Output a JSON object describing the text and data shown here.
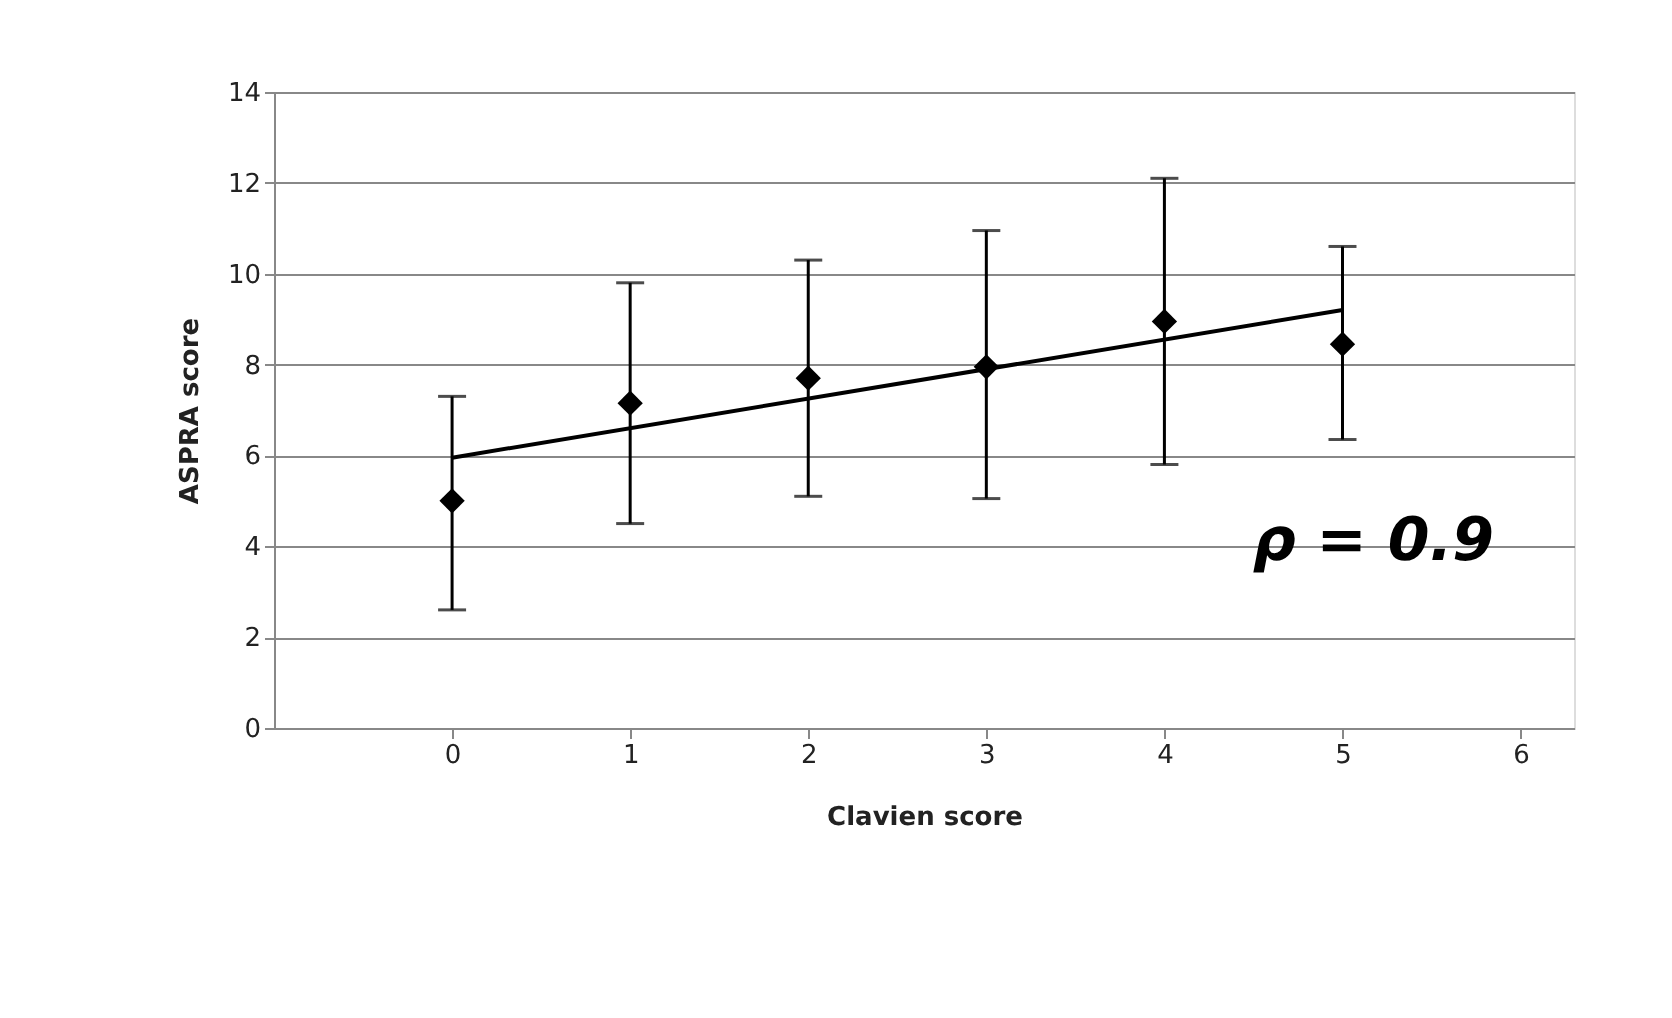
{
  "chart_data": {
    "type": "scatter",
    "xlabel": "Clavien score",
    "ylabel": "ASPRA score",
    "x": [
      0,
      1,
      2,
      3,
      4,
      5
    ],
    "xlim": [
      -1,
      6.3
    ],
    "xticks": [
      0,
      1,
      2,
      3,
      4,
      5,
      6
    ],
    "ylim": [
      0,
      14
    ],
    "yticks": [
      0,
      2,
      4,
      6,
      8,
      10,
      12,
      14
    ],
    "grid": "y",
    "series": [
      {
        "color": "#000000",
        "marker": "diamond",
        "values": [
          5.0,
          7.15,
          7.7,
          7.95,
          8.95,
          8.45
        ],
        "errors": [
          [
            2.6,
            7.3
          ],
          [
            4.5,
            9.8
          ],
          [
            5.1,
            10.3
          ],
          [
            5.05,
            10.95
          ],
          [
            5.8,
            12.1
          ],
          [
            6.35,
            10.6
          ]
        ]
      },
      {
        "type": "line",
        "color": "#000000",
        "x": [
          0,
          5
        ],
        "values": [
          5.95,
          9.2
        ],
        "line_style": "solid"
      }
    ],
    "annotations": [
      "ρ = 0.9"
    ]
  }
}
